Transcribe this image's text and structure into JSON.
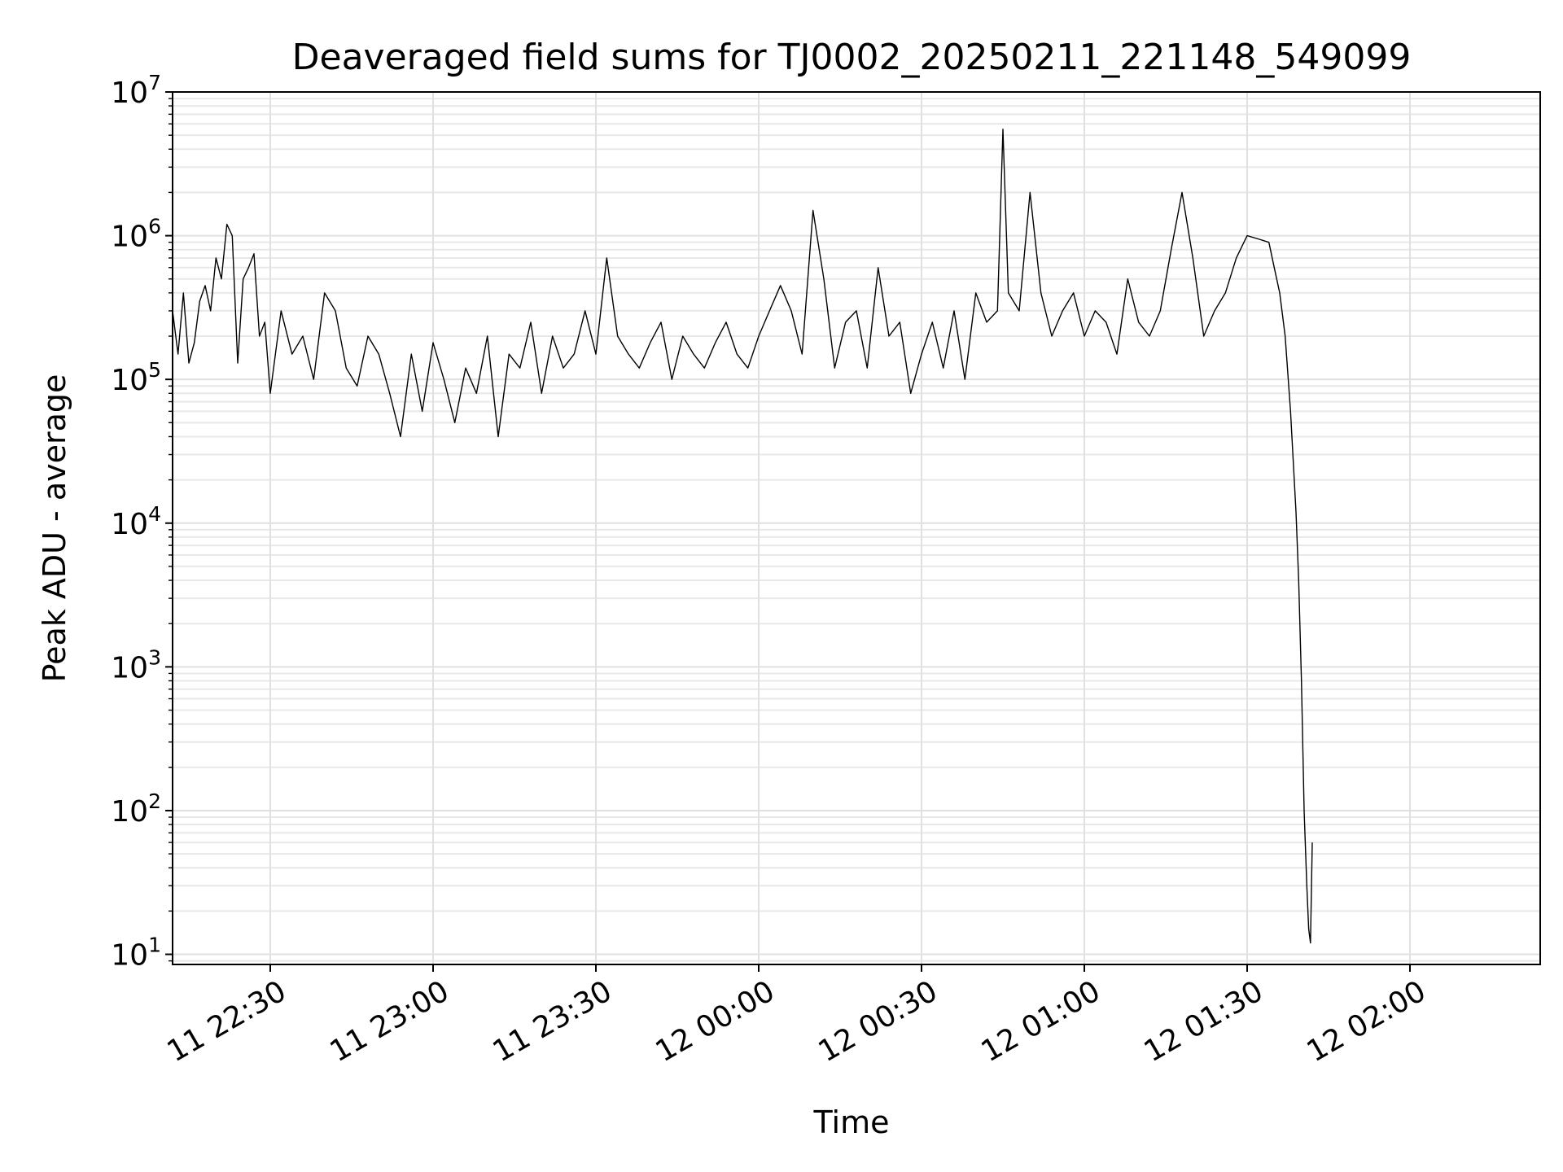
{
  "chart_data": {
    "type": "line",
    "title": "Deaveraged field sums for TJ0002_20250211_221148_549099",
    "xlabel": "Time",
    "ylabel": "Peak ADU - average",
    "yscale": "log",
    "ylim": [
      8.5,
      10000000
    ],
    "xlim": [
      "2025-02-11 22:12:00",
      "2025-02-12 02:24:00"
    ],
    "grid": true,
    "legend": "none",
    "x_ticks": [
      "2025-02-11 22:30",
      "2025-02-11 23:00",
      "2025-02-11 23:30",
      "2025-02-12 00:00",
      "2025-02-12 00:30",
      "2025-02-12 01:00",
      "2025-02-12 01:30",
      "2025-02-12 02:00"
    ],
    "x_tick_labels": [
      "11 22:30",
      "11 23:00",
      "11 23:30",
      "12 00:00",
      "12 00:30",
      "12 01:00",
      "12 01:30",
      "12 02:00"
    ],
    "y_ticks": [
      {
        "value": 10,
        "base": "10",
        "exp": "1"
      },
      {
        "value": 100,
        "base": "10",
        "exp": "2"
      },
      {
        "value": 1000,
        "base": "10",
        "exp": "3"
      },
      {
        "value": 10000,
        "base": "10",
        "exp": "4"
      },
      {
        "value": 100000,
        "base": "10",
        "exp": "5"
      },
      {
        "value": 1000000,
        "base": "10",
        "exp": "6"
      },
      {
        "value": 10000000,
        "base": "10",
        "exp": "7"
      }
    ],
    "series": [
      {
        "color": "#000000",
        "x": [
          "2025-02-11 22:12:00",
          "2025-02-11 22:13:00",
          "2025-02-11 22:14:00",
          "2025-02-11 22:15:00",
          "2025-02-11 22:16:00",
          "2025-02-11 22:17:00",
          "2025-02-11 22:18:00",
          "2025-02-11 22:19:00",
          "2025-02-11 22:20:00",
          "2025-02-11 22:21:00",
          "2025-02-11 22:22:00",
          "2025-02-11 22:23:00",
          "2025-02-11 22:24:00",
          "2025-02-11 22:25:00",
          "2025-02-11 22:26:00",
          "2025-02-11 22:27:00",
          "2025-02-11 22:28:00",
          "2025-02-11 22:29:00",
          "2025-02-11 22:30:00",
          "2025-02-11 22:32:00",
          "2025-02-11 22:34:00",
          "2025-02-11 22:36:00",
          "2025-02-11 22:38:00",
          "2025-02-11 22:40:00",
          "2025-02-11 22:42:00",
          "2025-02-11 22:44:00",
          "2025-02-11 22:46:00",
          "2025-02-11 22:48:00",
          "2025-02-11 22:50:00",
          "2025-02-11 22:52:00",
          "2025-02-11 22:54:00",
          "2025-02-11 22:56:00",
          "2025-02-11 22:58:00",
          "2025-02-11 23:00:00",
          "2025-02-11 23:02:00",
          "2025-02-11 23:04:00",
          "2025-02-11 23:06:00",
          "2025-02-11 23:08:00",
          "2025-02-11 23:10:00",
          "2025-02-11 23:12:00",
          "2025-02-11 23:14:00",
          "2025-02-11 23:16:00",
          "2025-02-11 23:18:00",
          "2025-02-11 23:20:00",
          "2025-02-11 23:22:00",
          "2025-02-11 23:24:00",
          "2025-02-11 23:26:00",
          "2025-02-11 23:28:00",
          "2025-02-11 23:30:00",
          "2025-02-11 23:32:00",
          "2025-02-11 23:34:00",
          "2025-02-11 23:36:00",
          "2025-02-11 23:38:00",
          "2025-02-11 23:40:00",
          "2025-02-11 23:42:00",
          "2025-02-11 23:44:00",
          "2025-02-11 23:46:00",
          "2025-02-11 23:48:00",
          "2025-02-11 23:50:00",
          "2025-02-11 23:52:00",
          "2025-02-11 23:54:00",
          "2025-02-11 23:56:00",
          "2025-02-11 23:58:00",
          "2025-02-12 00:00:00",
          "2025-02-12 00:02:00",
          "2025-02-12 00:04:00",
          "2025-02-12 00:06:00",
          "2025-02-12 00:08:00",
          "2025-02-12 00:10:00",
          "2025-02-12 00:12:00",
          "2025-02-12 00:14:00",
          "2025-02-12 00:16:00",
          "2025-02-12 00:18:00",
          "2025-02-12 00:20:00",
          "2025-02-12 00:22:00",
          "2025-02-12 00:24:00",
          "2025-02-12 00:26:00",
          "2025-02-12 00:28:00",
          "2025-02-12 00:30:00",
          "2025-02-12 00:32:00",
          "2025-02-12 00:34:00",
          "2025-02-12 00:36:00",
          "2025-02-12 00:38:00",
          "2025-02-12 00:40:00",
          "2025-02-12 00:42:00",
          "2025-02-12 00:44:00",
          "2025-02-12 00:45:00",
          "2025-02-12 00:46:00",
          "2025-02-12 00:48:00",
          "2025-02-12 00:50:00",
          "2025-02-12 00:52:00",
          "2025-02-12 00:54:00",
          "2025-02-12 00:56:00",
          "2025-02-12 00:58:00",
          "2025-02-12 01:00:00",
          "2025-02-12 01:02:00",
          "2025-02-12 01:04:00",
          "2025-02-12 01:06:00",
          "2025-02-12 01:08:00",
          "2025-02-12 01:10:00",
          "2025-02-12 01:12:00",
          "2025-02-12 01:14:00",
          "2025-02-12 01:16:00",
          "2025-02-12 01:18:00",
          "2025-02-12 01:20:00",
          "2025-02-12 01:22:00",
          "2025-02-12 01:24:00",
          "2025-02-12 01:26:00",
          "2025-02-12 01:28:00",
          "2025-02-12 01:30:00",
          "2025-02-12 01:32:00",
          "2025-02-12 01:34:00",
          "2025-02-12 01:35:00",
          "2025-02-12 01:36:00",
          "2025-02-12 01:37:00",
          "2025-02-12 01:38:00",
          "2025-02-12 01:39:00",
          "2025-02-12 01:39:30",
          "2025-02-12 01:40:00",
          "2025-02-12 01:40:30",
          "2025-02-12 01:41:00",
          "2025-02-12 01:41:20",
          "2025-02-12 01:41:40",
          "2025-02-12 01:42:00"
        ],
        "values": [
          300000,
          150000,
          400000,
          130000,
          180000,
          350000,
          450000,
          300000,
          700000,
          500000,
          1200000,
          1000000,
          130000,
          500000,
          600000,
          750000,
          200000,
          250000,
          80000,
          300000,
          150000,
          200000,
          100000,
          400000,
          300000,
          120000,
          90000,
          200000,
          150000,
          80000,
          40000,
          150000,
          60000,
          180000,
          100000,
          50000,
          120000,
          80000,
          200000,
          40000,
          150000,
          120000,
          250000,
          80000,
          200000,
          120000,
          150000,
          300000,
          150000,
          700000,
          200000,
          150000,
          120000,
          180000,
          250000,
          100000,
          200000,
          150000,
          120000,
          180000,
          250000,
          150000,
          120000,
          200000,
          300000,
          450000,
          300000,
          150000,
          1500000,
          500000,
          120000,
          250000,
          300000,
          120000,
          600000,
          200000,
          250000,
          80000,
          150000,
          250000,
          120000,
          300000,
          100000,
          400000,
          250000,
          300000,
          5500000,
          400000,
          300000,
          2000000,
          400000,
          200000,
          300000,
          400000,
          200000,
          300000,
          250000,
          150000,
          500000,
          250000,
          200000,
          300000,
          800000,
          2000000,
          700000,
          200000,
          300000,
          400000,
          700000,
          1000000,
          950000,
          900000,
          600000,
          400000,
          200000,
          60000,
          12000,
          4000,
          800,
          100,
          30,
          15,
          12,
          60
        ]
      }
    ]
  }
}
